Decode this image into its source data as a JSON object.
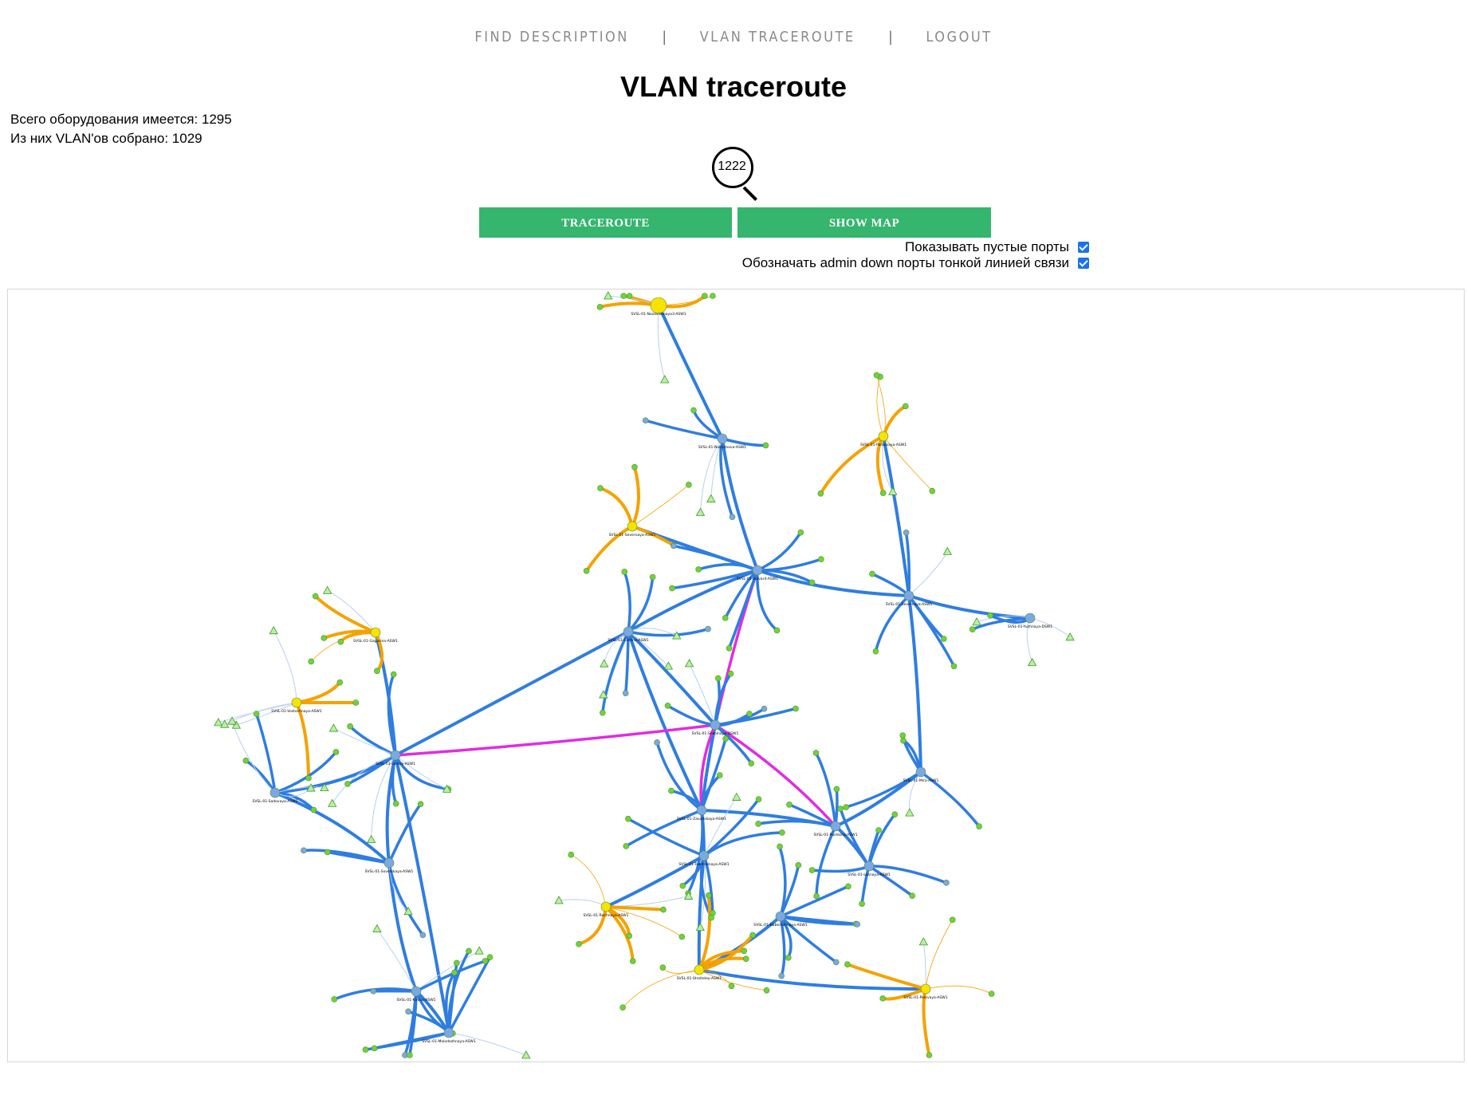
{
  "nav": {
    "items": [
      {
        "label": "FIND DESCRIPTION"
      },
      {
        "label": "VLAN TRACEROUTE"
      },
      {
        "label": "LOGOUT"
      }
    ],
    "separator": "|"
  },
  "page_title": "VLAN traceroute",
  "stats": {
    "total": "Всего оборудования имеется: 1295",
    "collected": "Из них VLAN'ов собрано: 1029"
  },
  "search": {
    "value": "1222",
    "icon": "magnifier-icon"
  },
  "buttons": {
    "traceroute": "TRACEROUTE",
    "show_map": "SHOW MAP"
  },
  "options": {
    "show_empty_ports": {
      "label": "Показывать пустые порты",
      "checked": true
    },
    "admin_down_thin": {
      "label": "Обозначать admin down порты тонкой линией связи",
      "checked": true
    }
  },
  "colors": {
    "button": "#35b56e",
    "link_blue": "#2f7de1",
    "link_orange": "#f5a200",
    "link_magenta": "#e02de0",
    "node_blue": "#7aa8e6",
    "node_yellow": "#f7e200",
    "node_green": "#6cd43a",
    "thin_link": "#b8d0f0"
  },
  "graph": {
    "hubs": [
      {
        "id": "h1",
        "label": "SVSL-01-Nezavisimaya3-ASW1",
        "color": "yellow"
      },
      {
        "id": "h2",
        "label": "SVSL-01-Nakhimova-ASW1",
        "color": "blue"
      },
      {
        "id": "h3",
        "label": "SVSL-01-Severnaya-ASW1",
        "color": "yellow"
      },
      {
        "id": "h4",
        "label": "SVSL-01-Bulvar4-ASW1",
        "color": "blue"
      },
      {
        "id": "h5",
        "label": "SVSL-01-Parkovaya-ASW1",
        "color": "yellow"
      },
      {
        "id": "h6",
        "label": "SVSL-01-Severnaya-ASW1",
        "color": "blue"
      },
      {
        "id": "h7",
        "label": "SVSL-01-Gagarina-ASW1",
        "color": "yellow"
      },
      {
        "id": "h8",
        "label": "SVSL-01-Central-ASW1",
        "color": "blue"
      },
      {
        "id": "h9",
        "label": "SVSL-01-Vostochnaya-ASW1",
        "color": "yellow"
      },
      {
        "id": "h10",
        "label": "SVSL-01-Lenina-ASW1",
        "color": "blue"
      },
      {
        "id": "h11",
        "label": "SVSL-01-Shkolnaya-DSW1",
        "color": "blue"
      },
      {
        "id": "h12",
        "label": "SVSL-01-Yuzhnaya-DSW1",
        "color": "blue"
      },
      {
        "id": "h13",
        "label": "SVSL-01-Sadovaya-ASW1",
        "color": "blue"
      },
      {
        "id": "h14",
        "label": "SVSL-01-Mira-ASW1",
        "color": "blue"
      },
      {
        "id": "h15",
        "label": "SVSL-01-Zavodskaya-ASW1",
        "color": "blue"
      },
      {
        "id": "h16",
        "label": "SVSL-01-Pushkina-ASW1",
        "color": "blue"
      },
      {
        "id": "h17",
        "label": "SVSL-01-Lesnaya-ASW1",
        "color": "blue"
      },
      {
        "id": "h18",
        "label": "SVSL-01-Rechnaya-ASW1",
        "color": "yellow"
      },
      {
        "id": "h19",
        "label": "SVSL-01-Tsentralnaya-ASW1",
        "color": "blue"
      },
      {
        "id": "h20",
        "label": "SVSL-01-Stroiteley-ASW1",
        "color": "yellow"
      },
      {
        "id": "h21",
        "label": "SVSL-01-Polevaya-ASW1",
        "color": "yellow"
      },
      {
        "id": "h22",
        "label": "SVSL-01-Kirova-ASW1",
        "color": "blue"
      },
      {
        "id": "h23",
        "label": "SVSL-01-Sovetskaya-ASW1",
        "color": "blue"
      },
      {
        "id": "h24",
        "label": "SVSL-01-Molodezhnaya-ASW1",
        "color": "blue"
      },
      {
        "id": "h25",
        "label": "SVSL-01-Naberezhnaya-ASW1",
        "color": "blue"
      }
    ]
  }
}
